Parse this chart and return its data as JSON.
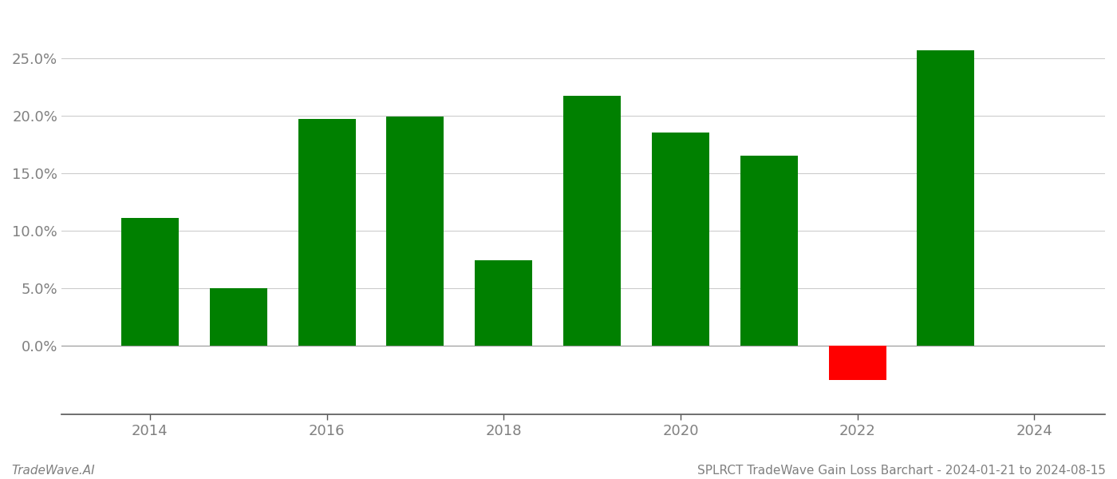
{
  "years": [
    2014,
    2015,
    2016,
    2017,
    2018,
    2019,
    2020,
    2021,
    2022,
    2023
  ],
  "values": [
    0.111,
    0.05,
    0.197,
    0.199,
    0.074,
    0.217,
    0.185,
    0.165,
    -0.03,
    0.257
  ],
  "colors": [
    "#008000",
    "#008000",
    "#008000",
    "#008000",
    "#008000",
    "#008000",
    "#008000",
    "#008000",
    "#ff0000",
    "#008000"
  ],
  "bar_width": 0.65,
  "ylim": [
    -0.06,
    0.29
  ],
  "yticks": [
    0.0,
    0.05,
    0.1,
    0.15,
    0.2,
    0.25
  ],
  "xlim": [
    2013.0,
    2024.8
  ],
  "xticks": [
    2014,
    2016,
    2018,
    2020,
    2022,
    2024
  ],
  "xlabel": "",
  "ylabel": "",
  "title": "",
  "footer_left": "TradeWave.AI",
  "footer_right": "SPLRCT TradeWave Gain Loss Barchart - 2024-01-21 to 2024-08-15",
  "bg_color": "#ffffff",
  "grid_color": "#cccccc",
  "text_color": "#808080",
  "footer_fontsize": 11,
  "tick_fontsize": 13
}
